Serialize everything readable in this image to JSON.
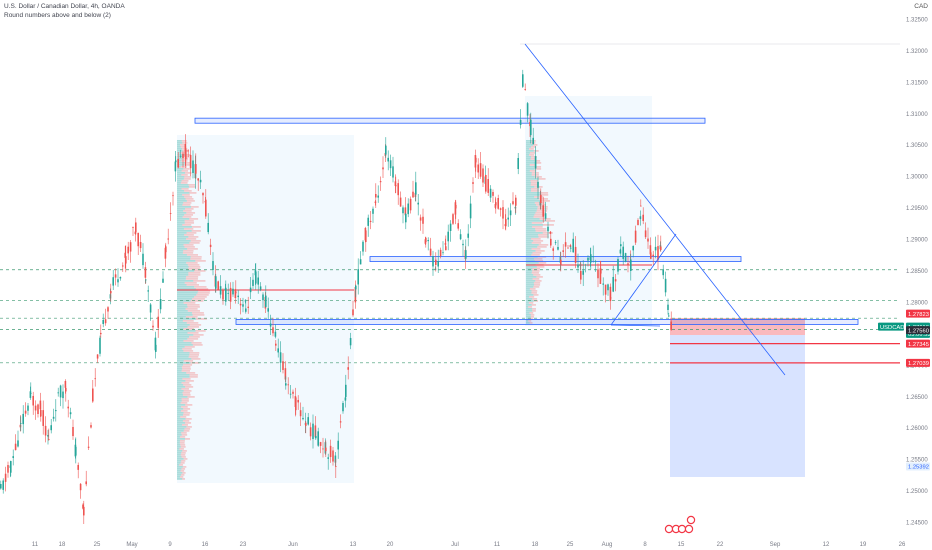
{
  "header": {
    "title": "U.S. Dollar / Canadian Dollar, 4h, OANDA",
    "subtitle": "Round numbers above and below (2)",
    "currency": "CAD"
  },
  "colors": {
    "up": "#26a69a",
    "down": "#ef5350",
    "symbol_badge": "#089981",
    "red_label": "#f23645",
    "zone_border": "#2962ff",
    "zone_fill": "rgba(41,98,255,0.12)",
    "range_fill": "rgba(33,150,243,0.06)",
    "grid_dashed": "#3d9970",
    "trendline": "#2962ff"
  },
  "chart_data": {
    "type": "candlestick",
    "y_ticks": [
      "1.32500",
      "1.32000",
      "1.31500",
      "1.31000",
      "1.30500",
      "1.30000",
      "1.29500",
      "1.29000",
      "1.28500",
      "1.28000",
      "1.27500",
      "1.27000",
      "1.26500",
      "1.26000",
      "1.25500",
      "1.25000",
      "1.24500"
    ],
    "x_ticks": [
      "11",
      "18",
      "25",
      "May",
      "9",
      "16",
      "23",
      "Jun",
      "13",
      "20",
      "Jul",
      "11",
      "18",
      "25",
      "Aug",
      "8",
      "15",
      "22",
      "Sep",
      "12",
      "19",
      "26"
    ],
    "ylim": [
      1.2435,
      1.3265
    ],
    "price_labels": [
      {
        "text": "1.27823",
        "value": 1.27823,
        "kind": "red"
      },
      {
        "text": "USDCAD",
        "value": 1.27616,
        "kind": "symbol"
      },
      {
        "text": "1.27616",
        "value": 1.27616,
        "kind": "green"
      },
      {
        "text": "03:06:53",
        "value": 1.275,
        "kind": "green-small"
      },
      {
        "text": "1.27560",
        "value": 1.2756,
        "kind": "dark"
      },
      {
        "text": "1.27345",
        "value": 1.27345,
        "kind": "red"
      },
      {
        "text": "1.27039",
        "value": 1.27039,
        "kind": "red"
      },
      {
        "text": "1.25392",
        "value": 1.25392,
        "kind": "blue"
      }
    ],
    "horizontal_levels": [
      {
        "value": 1.2852,
        "style": "dashed"
      },
      {
        "value": 1.2803,
        "style": "dashed"
      },
      {
        "value": 1.2775,
        "style": "dashed"
      },
      {
        "value": 1.2757,
        "style": "dashed"
      },
      {
        "value": 1.2704,
        "style": "dashed"
      }
    ],
    "zones": [
      {
        "y_top": 1.3093,
        "y_bottom": 1.3085
      },
      {
        "y_top": 1.2873,
        "y_bottom": 1.2865
      },
      {
        "y_top": 1.2773,
        "y_bottom": 1.2765
      }
    ],
    "candle_path": [
      [
        0,
        1.25
      ],
      [
        10,
        1.254
      ],
      [
        20,
        1.26
      ],
      [
        30,
        1.265
      ],
      [
        40,
        1.263
      ],
      [
        48,
        1.258
      ],
      [
        55,
        1.264
      ],
      [
        65,
        1.267
      ],
      [
        75,
        1.256
      ],
      [
        83,
        1.247
      ],
      [
        92,
        1.265
      ],
      [
        100,
        1.274
      ],
      [
        110,
        1.282
      ],
      [
        125,
        1.287
      ],
      [
        135,
        1.292
      ],
      [
        145,
        1.285
      ],
      [
        155,
        1.273
      ],
      [
        165,
        1.288
      ],
      [
        175,
        1.302
      ],
      [
        185,
        1.304
      ],
      [
        195,
        1.301
      ],
      [
        205,
        1.295
      ],
      [
        215,
        1.283
      ],
      [
        225,
        1.281
      ],
      [
        235,
        1.282
      ],
      [
        245,
        1.279
      ],
      [
        255,
        1.284
      ],
      [
        265,
        1.28
      ],
      [
        275,
        1.274
      ],
      [
        285,
        1.268
      ],
      [
        295,
        1.264
      ],
      [
        305,
        1.261
      ],
      [
        315,
        1.259
      ],
      [
        325,
        1.257
      ],
      [
        335,
        1.255
      ],
      [
        345,
        1.266
      ],
      [
        355,
        1.282
      ],
      [
        365,
        1.291
      ],
      [
        375,
        1.296
      ],
      [
        385,
        1.304
      ],
      [
        395,
        1.299
      ],
      [
        405,
        1.294
      ],
      [
        415,
        1.298
      ],
      [
        425,
        1.29
      ],
      [
        435,
        1.286
      ],
      [
        445,
        1.289
      ],
      [
        455,
        1.295
      ],
      [
        465,
        1.287
      ],
      [
        475,
        1.303
      ],
      [
        485,
        1.299
      ],
      [
        495,
        1.296
      ],
      [
        505,
        1.293
      ],
      [
        515,
        1.296
      ],
      [
        522,
        1.315
      ],
      [
        530,
        1.308
      ],
      [
        540,
        1.296
      ],
      [
        550,
        1.29
      ],
      [
        560,
        1.287
      ],
      [
        570,
        1.29
      ],
      [
        580,
        1.285
      ],
      [
        590,
        1.287
      ],
      [
        600,
        1.284
      ],
      [
        610,
        1.281
      ],
      [
        620,
        1.288
      ],
      [
        630,
        1.286
      ],
      [
        640,
        1.295
      ],
      [
        650,
        1.288
      ],
      [
        660,
        1.288
      ],
      [
        668,
        1.279
      ],
      [
        671,
        1.2765
      ]
    ]
  }
}
